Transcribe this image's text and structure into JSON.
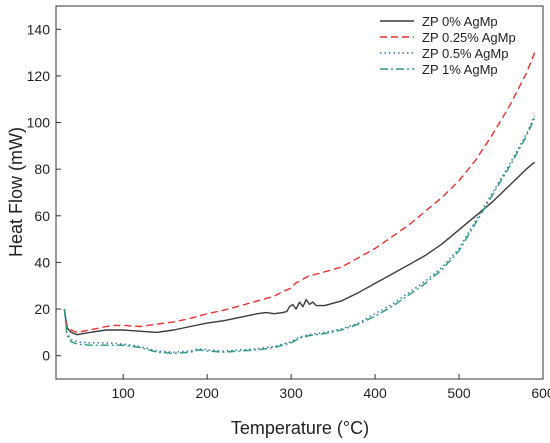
{
  "chart_data": {
    "type": "line",
    "title": "",
    "xlabel": "Temperature (°C)",
    "ylabel": "Heat Flow (mW)",
    "xlim": [
      20,
      600
    ],
    "ylim": [
      -10,
      150
    ],
    "xticks": [
      100,
      200,
      300,
      400,
      500,
      600
    ],
    "yticks": [
      0,
      20,
      40,
      60,
      80,
      100,
      120,
      140
    ],
    "grid": false,
    "legend_position": "top-right",
    "series": [
      {
        "name": "ZP 0% AgMp",
        "color": "#3a3a3a",
        "dash": "solid",
        "points": [
          [
            30,
            20
          ],
          [
            33,
            12
          ],
          [
            38,
            10
          ],
          [
            45,
            9
          ],
          [
            60,
            10
          ],
          [
            80,
            11
          ],
          [
            100,
            11
          ],
          [
            120,
            10.5
          ],
          [
            140,
            10
          ],
          [
            160,
            11
          ],
          [
            180,
            12.5
          ],
          [
            200,
            14
          ],
          [
            220,
            15
          ],
          [
            240,
            16.5
          ],
          [
            260,
            18
          ],
          [
            270,
            18.5
          ],
          [
            280,
            18
          ],
          [
            290,
            18.5
          ],
          [
            295,
            19
          ],
          [
            298,
            21
          ],
          [
            302,
            22
          ],
          [
            306,
            20
          ],
          [
            310,
            23
          ],
          [
            314,
            21
          ],
          [
            318,
            24
          ],
          [
            322,
            22
          ],
          [
            326,
            23
          ],
          [
            330,
            21.5
          ],
          [
            340,
            21.5
          ],
          [
            360,
            23.5
          ],
          [
            380,
            27
          ],
          [
            400,
            31
          ],
          [
            420,
            35
          ],
          [
            440,
            39
          ],
          [
            460,
            43
          ],
          [
            480,
            48
          ],
          [
            500,
            54
          ],
          [
            520,
            60
          ],
          [
            540,
            66
          ],
          [
            560,
            73
          ],
          [
            580,
            80
          ],
          [
            590,
            83
          ]
        ]
      },
      {
        "name": "ZP 0.25% AgMp",
        "color": "#e8302a",
        "dash": "dashed",
        "points": [
          [
            30,
            20
          ],
          [
            33,
            13
          ],
          [
            38,
            11
          ],
          [
            45,
            10
          ],
          [
            60,
            11
          ],
          [
            80,
            12.5
          ],
          [
            90,
            13
          ],
          [
            100,
            13
          ],
          [
            120,
            12.5
          ],
          [
            140,
            13.5
          ],
          [
            160,
            14.5
          ],
          [
            180,
            16
          ],
          [
            200,
            18
          ],
          [
            220,
            19.5
          ],
          [
            240,
            21.5
          ],
          [
            260,
            23.5
          ],
          [
            280,
            25.5
          ],
          [
            290,
            27.5
          ],
          [
            300,
            29
          ],
          [
            305,
            31
          ],
          [
            310,
            32
          ],
          [
            320,
            34
          ],
          [
            340,
            36
          ],
          [
            360,
            38
          ],
          [
            380,
            42
          ],
          [
            400,
            46
          ],
          [
            420,
            51
          ],
          [
            440,
            56
          ],
          [
            460,
            62
          ],
          [
            480,
            68
          ],
          [
            500,
            75
          ],
          [
            520,
            84
          ],
          [
            540,
            95
          ],
          [
            560,
            107
          ],
          [
            580,
            121
          ],
          [
            590,
            130
          ]
        ]
      },
      {
        "name": "ZP 0.5% AgMp",
        "color": "#2f6fc2",
        "dash": "dotted",
        "points": [
          [
            30,
            20
          ],
          [
            33,
            10
          ],
          [
            38,
            7
          ],
          [
            45,
            6
          ],
          [
            60,
            5.5
          ],
          [
            80,
            5.5
          ],
          [
            100,
            5
          ],
          [
            120,
            4
          ],
          [
            140,
            2
          ],
          [
            160,
            1.5
          ],
          [
            180,
            2
          ],
          [
            190,
            3
          ],
          [
            200,
            2.5
          ],
          [
            220,
            2
          ],
          [
            240,
            2.5
          ],
          [
            260,
            3
          ],
          [
            280,
            4
          ],
          [
            300,
            6
          ],
          [
            310,
            8
          ],
          [
            320,
            9
          ],
          [
            340,
            10
          ],
          [
            360,
            11.5
          ],
          [
            380,
            14
          ],
          [
            400,
            18
          ],
          [
            420,
            22
          ],
          [
            440,
            27
          ],
          [
            460,
            32
          ],
          [
            480,
            38
          ],
          [
            500,
            46
          ],
          [
            520,
            58
          ],
          [
            540,
            70
          ],
          [
            560,
            82
          ],
          [
            580,
            95
          ],
          [
            590,
            103
          ]
        ]
      },
      {
        "name": "ZP 1% AgMp",
        "color": "#2a9a78",
        "dash": "dashdot",
        "points": [
          [
            30,
            20
          ],
          [
            33,
            9
          ],
          [
            38,
            6
          ],
          [
            45,
            5
          ],
          [
            60,
            4.5
          ],
          [
            80,
            4.5
          ],
          [
            100,
            4.5
          ],
          [
            120,
            3.5
          ],
          [
            140,
            1.5
          ],
          [
            160,
            1
          ],
          [
            180,
            1.5
          ],
          [
            190,
            2.5
          ],
          [
            200,
            2
          ],
          [
            220,
            1.5
          ],
          [
            240,
            2
          ],
          [
            260,
            2.5
          ],
          [
            280,
            3.5
          ],
          [
            300,
            5.5
          ],
          [
            310,
            7.5
          ],
          [
            320,
            8.5
          ],
          [
            340,
            9.5
          ],
          [
            360,
            11
          ],
          [
            380,
            13.5
          ],
          [
            400,
            17
          ],
          [
            420,
            21
          ],
          [
            440,
            26
          ],
          [
            460,
            31
          ],
          [
            480,
            37
          ],
          [
            500,
            45
          ],
          [
            520,
            57
          ],
          [
            540,
            69
          ],
          [
            560,
            81
          ],
          [
            580,
            94
          ],
          [
            590,
            102
          ]
        ]
      }
    ]
  }
}
